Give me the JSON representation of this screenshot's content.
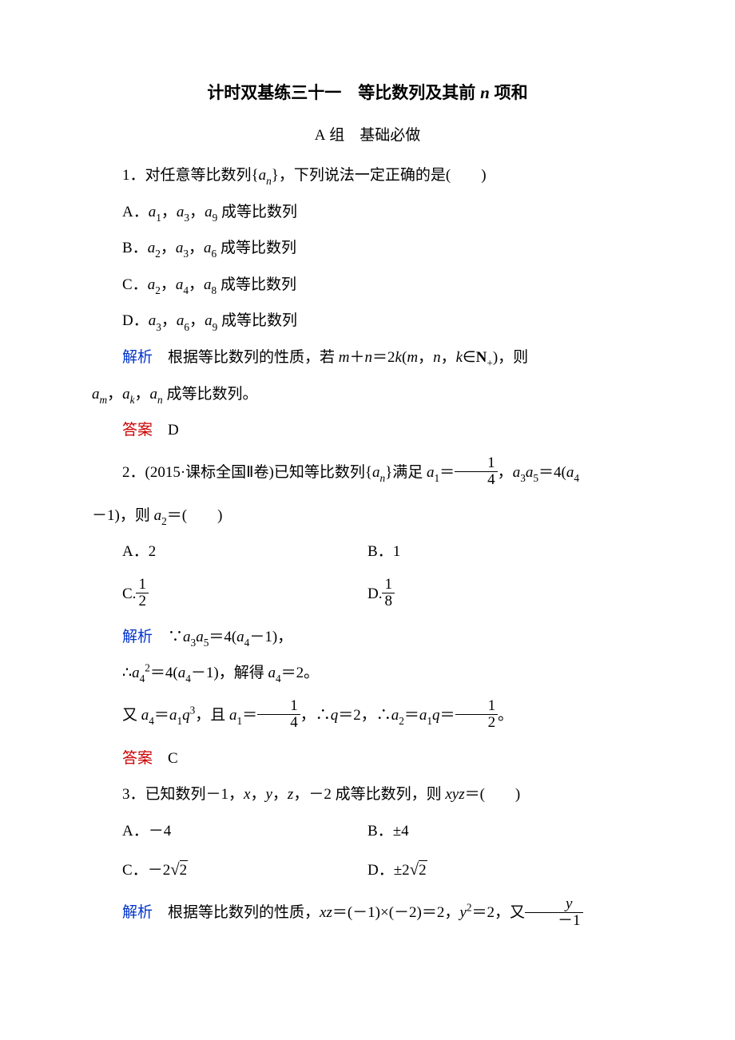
{
  "title_main": "计时双基练三十一　等比数列及其前 ",
  "title_n": "n",
  "title_suffix": " 项和",
  "subtitle_a": "A",
  "subtitle_group": " 组",
  "subtitle_rest": "　基础必做",
  "q1": {
    "num": "1",
    "stem_prefix": "．对任意等比数列{",
    "stem_mid": "}，下列说法一定正确的是(　　)",
    "optA": "A．",
    "optA_text": " 成等比数列",
    "optB": "B．",
    "optB_text": " 成等比数列",
    "optC": "C．",
    "optC_text": " 成等比数列",
    "optD": "D．",
    "optD_text": " 成等比数列",
    "expl_label": "解析",
    "expl_1": "　根据等比数列的性质，若 ",
    "expl_2": "，则 ",
    "expl_end": " 成等比数列。",
    "ans_label": "答案",
    "ans": "　D"
  },
  "q2": {
    "num": "2",
    "stem_prefix": "．(2015·课标全国Ⅱ卷)已知等比数列{",
    "stem_mid1": "}满足 ",
    "stem_mid2_a": "，",
    "stem_mid3": "，则 ",
    "stem_mid2_b": "，",
    "stem_end": "＝(　　)",
    "cont_prefix": "－1)",
    "optA_l": "A．",
    "optA_v": "2",
    "optB_l": "B．",
    "optB_v": "1",
    "optC_l": "C.",
    "optD_l": "D.",
    "expl_label": "解析",
    "expl_l1_a": "　∵",
    "expl_l1_eq": "＝4(",
    "expl_l1_b": "－1)，",
    "expl_l2_a": "∴",
    "expl_l2_eq": "＝4(",
    "expl_l2_b": "－1)，解得 ",
    "expl_l2_c": "＝2。",
    "expl_l3_a": "又 ",
    "expl_l3_eq": "＝",
    "expl_l3_b": "，且 ",
    "expl_l3_c": "＝",
    "expl_l3_d": "，∴",
    "expl_l3_e": "＝2，∴",
    "expl_l3_f": "＝",
    "expl_l3_g": "＝",
    "expl_l3_h": "。",
    "ans_label": "答案",
    "ans": "　C"
  },
  "q3": {
    "num": "3",
    "stem_prefix": "．已知数列－1，",
    "stem_mid1": "，",
    "stem_mid2": "，",
    "stem_mid3": "，－2 成等比数列，则 ",
    "stem_end": "＝(　　)",
    "optA_l": "A．",
    "optA_v": "－4",
    "optB_l": "B．",
    "optB_v": "±4",
    "optC_l": "C．",
    "optC_v1": "－2",
    "optD_l": "D．",
    "optD_v1": "±2",
    "expl_label": "解析",
    "expl_a": "　根据等比数列的性质，",
    "expl_b": "＝(－1)×(－2)＝2，",
    "expl_c": "＝2，又"
  },
  "frac": {
    "one": "1",
    "two": "2",
    "four": "4",
    "eight": "8"
  },
  "sym": {
    "an": "a",
    "n": "n",
    "m": "m",
    "k": "k",
    "plus": "＋",
    "eq": "＝",
    "in": "∈",
    "Nplus": "N",
    "q": "q",
    "x": "x",
    "y": "y",
    "z": "z",
    "neg1": "－1"
  }
}
